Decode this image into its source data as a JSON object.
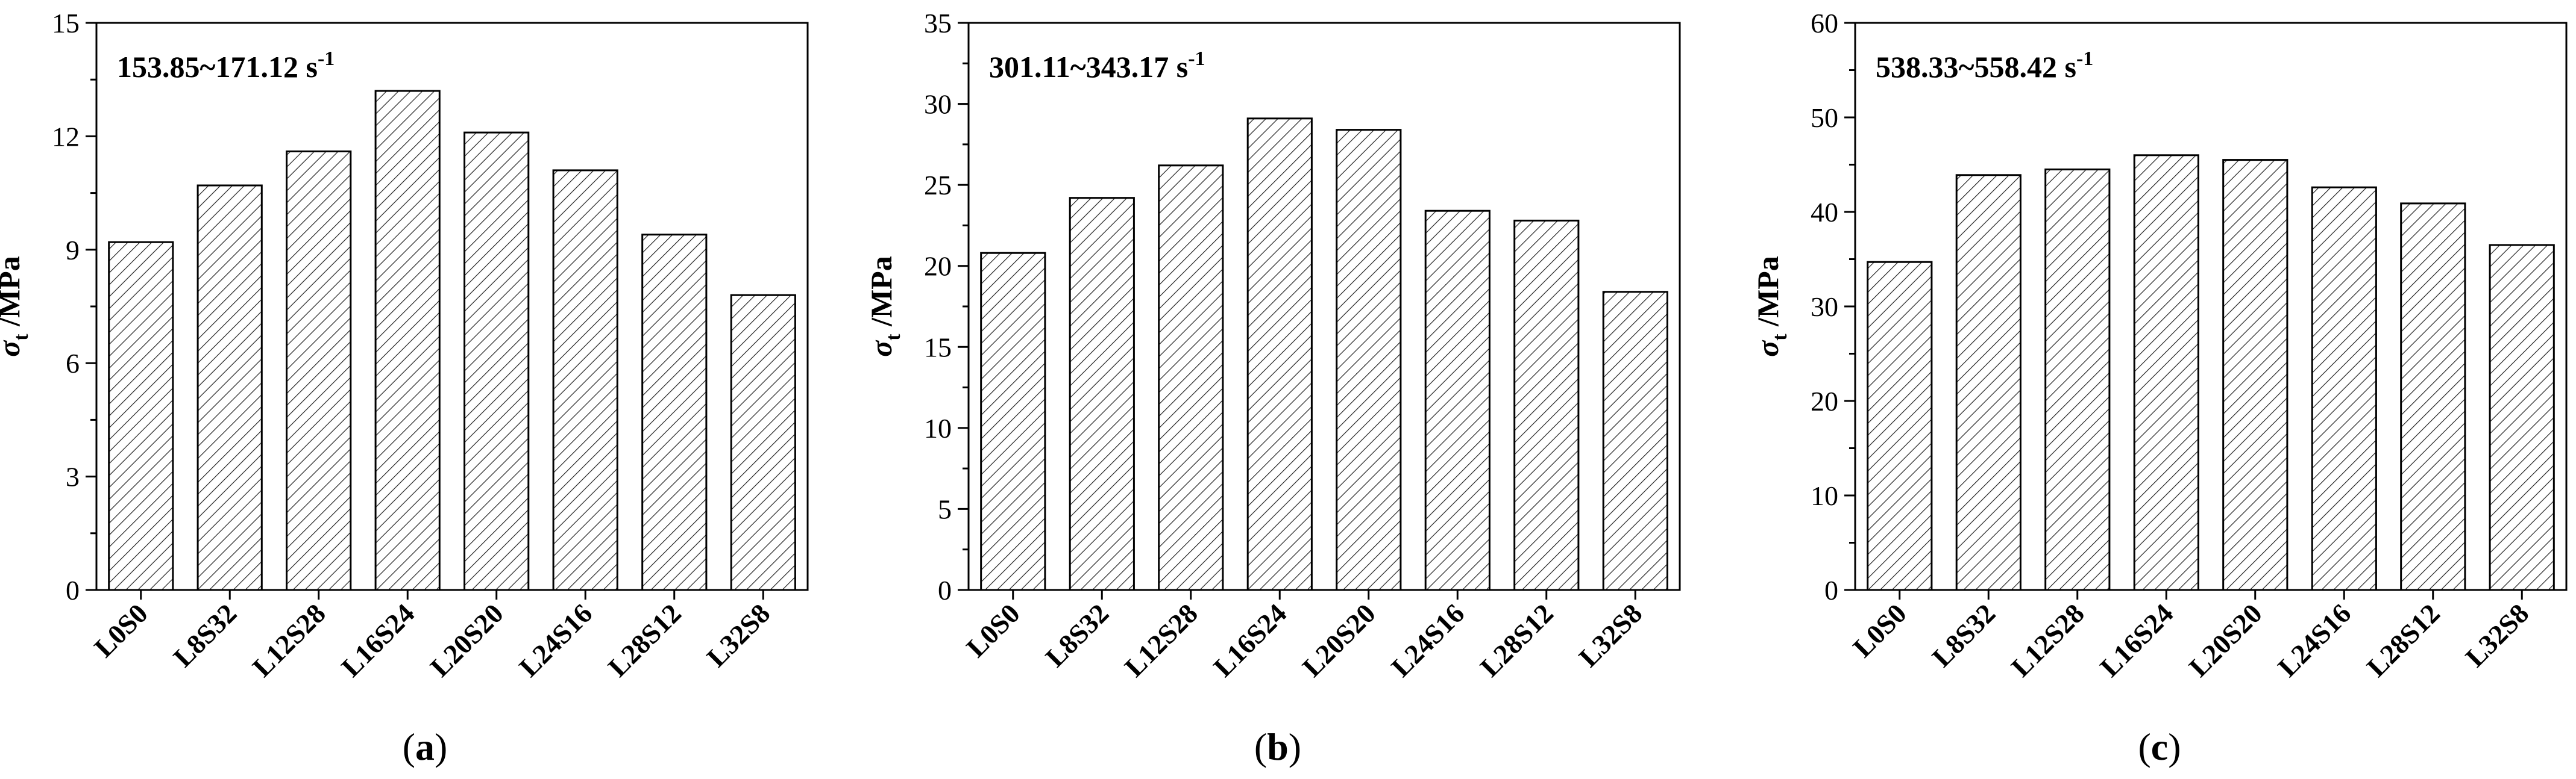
{
  "figure": {
    "captions": [
      {
        "open": "(",
        "letter": "a",
        "close": ")"
      },
      {
        "open": "(",
        "letter": "b",
        "close": ")"
      },
      {
        "open": "(",
        "letter": "c",
        "close": ")"
      }
    ]
  },
  "chart_data": [
    {
      "type": "bar",
      "annotation": {
        "main": "153.85~171.12 s",
        "sup": "-1"
      },
      "ylabel": {
        "symbol": "σ",
        "sub": "t",
        "unit": " /MPa"
      },
      "categories": [
        "L0S0",
        "L8S32",
        "L12S28",
        "L16S24",
        "L20S20",
        "L24S16",
        "L28S12",
        "L32S8"
      ],
      "values": [
        9.2,
        10.7,
        11.6,
        13.2,
        12.1,
        11.1,
        9.4,
        7.8
      ],
      "ylim": [
        0,
        15
      ],
      "yticks": [
        0,
        3,
        6,
        9,
        12,
        15
      ],
      "yticks_labels": [
        "0",
        "3",
        "6",
        "9",
        "12",
        "15"
      ],
      "bar_fill": "hatched"
    },
    {
      "type": "bar",
      "annotation": {
        "main": "301.11~343.17 s",
        "sup": "-1"
      },
      "ylabel": {
        "symbol": "σ",
        "sub": "t",
        "unit": " /MPa"
      },
      "categories": [
        "L0S0",
        "L8S32",
        "L12S28",
        "L16S24",
        "L20S20",
        "L24S16",
        "L28S12",
        "L32S8"
      ],
      "values": [
        20.8,
        24.2,
        26.2,
        29.1,
        28.4,
        23.4,
        22.8,
        18.4
      ],
      "ylim": [
        0,
        35
      ],
      "yticks": [
        0,
        5,
        10,
        15,
        20,
        25,
        30,
        35
      ],
      "yticks_labels": [
        "0",
        "5",
        "10",
        "15",
        "20",
        "25",
        "30",
        "35"
      ],
      "bar_fill": "hatched"
    },
    {
      "type": "bar",
      "annotation": {
        "main": "538.33~558.42 s",
        "sup": "-1"
      },
      "ylabel": {
        "symbol": "σ",
        "sub": "t",
        "unit": " /MPa"
      },
      "categories": [
        "L0S0",
        "L8S32",
        "L12S28",
        "L16S24",
        "L20S20",
        "L24S16",
        "L28S12",
        "L32S8"
      ],
      "values": [
        34.7,
        43.9,
        44.5,
        46.0,
        45.5,
        42.6,
        40.9,
        36.5
      ],
      "ylim": [
        0,
        60
      ],
      "yticks": [
        0,
        10,
        20,
        30,
        40,
        50,
        60
      ],
      "yticks_labels": [
        "0",
        "10",
        "20",
        "30",
        "40",
        "50",
        "60"
      ],
      "bar_fill": "hatched"
    }
  ]
}
